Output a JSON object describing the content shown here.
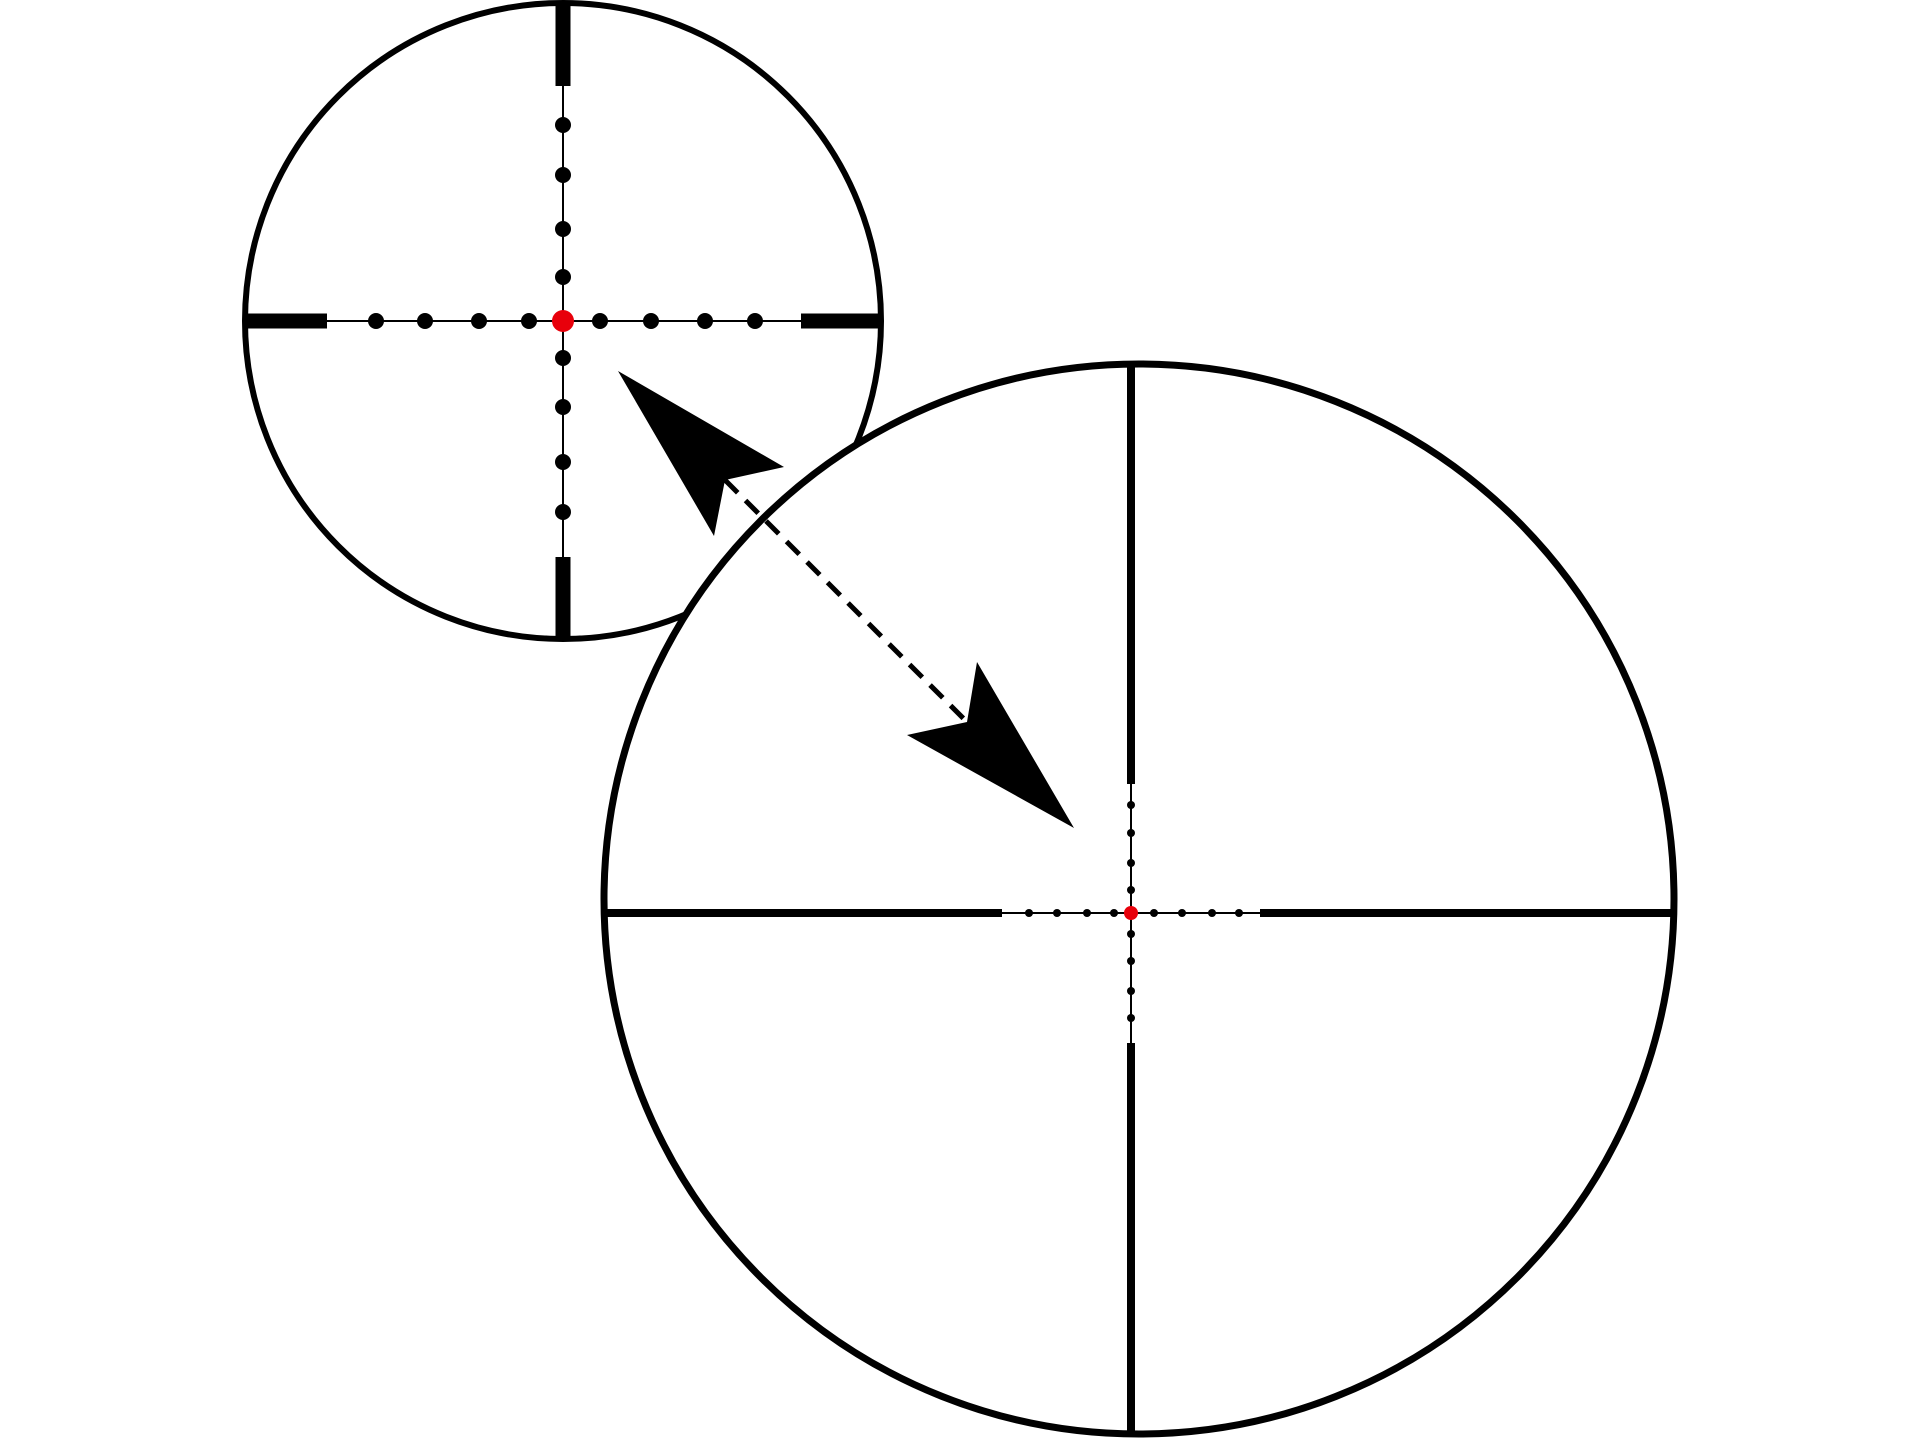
{
  "diagram": {
    "colors": {
      "line": "#000000",
      "center_dot": "#e8000b",
      "background": "#ffffff"
    },
    "small_reticle": {
      "dots_per_arm": 4,
      "center_marker": "red-dot"
    },
    "large_reticle": {
      "dots_per_arm": 4,
      "center_marker": "red-dot"
    },
    "connector": {
      "style": "dashed",
      "arrowheads": "both-ends"
    }
  }
}
